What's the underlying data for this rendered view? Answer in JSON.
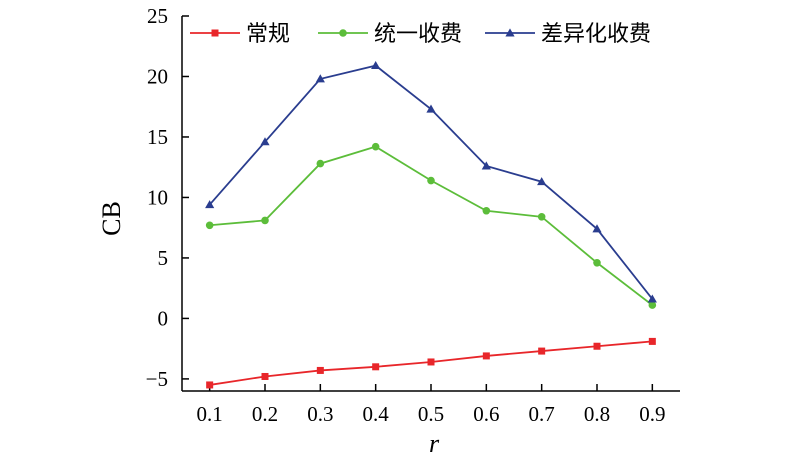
{
  "chart_data": {
    "type": "line",
    "x": [
      0.1,
      0.2,
      0.3,
      0.4,
      0.5,
      0.6,
      0.7,
      0.8,
      0.9
    ],
    "xticks": [
      "0.1",
      "0.2",
      "0.3",
      "0.4",
      "0.5",
      "0.6",
      "0.7",
      "0.8",
      "0.9"
    ],
    "yticks": [
      "−5",
      "0",
      "5",
      "10",
      "15",
      "20",
      "25"
    ],
    "ytick_values": [
      -5,
      0,
      5,
      10,
      15,
      20,
      25
    ],
    "xlabel": "r",
    "ylabel": "CB",
    "xlim": [
      0.05,
      0.95
    ],
    "ylim": [
      -6,
      25
    ],
    "grid": false,
    "legend_position": "top",
    "series": [
      {
        "name": "常规",
        "color": "#e8262a",
        "marker": "square",
        "values": [
          -5.5,
          -4.8,
          -4.3,
          -4.0,
          -3.6,
          -3.1,
          -2.7,
          -2.3,
          -1.9
        ]
      },
      {
        "name": "统一收费",
        "color": "#5cbd3a",
        "marker": "circle",
        "values": [
          7.7,
          8.1,
          12.8,
          14.2,
          11.4,
          8.9,
          8.4,
          4.6,
          1.1
        ]
      },
      {
        "name": "差异化收费",
        "color": "#2a3d8f",
        "marker": "triangle",
        "values": [
          9.4,
          14.6,
          19.8,
          20.9,
          17.3,
          12.6,
          11.3,
          7.4,
          1.6
        ]
      }
    ]
  }
}
